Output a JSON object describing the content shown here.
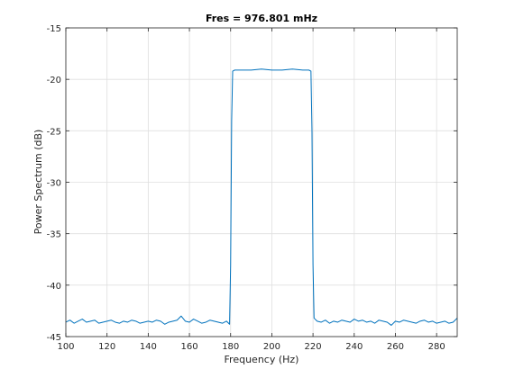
{
  "chart_data": {
    "type": "line",
    "title": "Fres = 976.801 mHz",
    "xlabel": "Frequency (Hz)",
    "ylabel": "Power Spectrum (dB)",
    "xlim": [
      100,
      290
    ],
    "ylim": [
      -45,
      -15
    ],
    "xticks": [
      100,
      120,
      140,
      160,
      180,
      200,
      220,
      240,
      260,
      280
    ],
    "yticks": [
      -45,
      -40,
      -35,
      -30,
      -25,
      -20,
      -15
    ],
    "xtick_labels": [
      "100",
      "120",
      "140",
      "160",
      "180",
      "200",
      "220",
      "240",
      "260",
      "280"
    ],
    "ytick_labels": [
      "-45",
      "-40",
      "-35",
      "-30",
      "-25",
      "-20",
      "-15"
    ],
    "grid": true,
    "series": [
      {
        "color": "#0072bd",
        "x": [
          100,
          102,
          104,
          106,
          108,
          110,
          112,
          114,
          116,
          118,
          120,
          122,
          124,
          126,
          128,
          130,
          132,
          134,
          136,
          138,
          140,
          142,
          144,
          146,
          148,
          150,
          152,
          154,
          156,
          158,
          160,
          162,
          164,
          166,
          168,
          170,
          172,
          174,
          176,
          178,
          179.5,
          180,
          180.5,
          181,
          182,
          185,
          190,
          195,
          200,
          205,
          210,
          215,
          218,
          219,
          219.5,
          220,
          220.5,
          221,
          222,
          224,
          226,
          228,
          230,
          232,
          234,
          236,
          238,
          240,
          242,
          244,
          246,
          248,
          250,
          252,
          254,
          256,
          258,
          260,
          262,
          264,
          266,
          268,
          270,
          272,
          274,
          276,
          278,
          280,
          282,
          284,
          286,
          288,
          290
        ],
        "y": [
          -43.6,
          -43.4,
          -43.7,
          -43.5,
          -43.3,
          -43.6,
          -43.5,
          -43.4,
          -43.7,
          -43.6,
          -43.5,
          -43.4,
          -43.6,
          -43.7,
          -43.5,
          -43.6,
          -43.4,
          -43.5,
          -43.7,
          -43.6,
          -43.5,
          -43.6,
          -43.4,
          -43.5,
          -43.8,
          -43.6,
          -43.5,
          -43.4,
          -43.0,
          -43.5,
          -43.6,
          -43.3,
          -43.5,
          -43.7,
          -43.6,
          -43.4,
          -43.5,
          -43.6,
          -43.7,
          -43.5,
          -43.8,
          -38.0,
          -24.0,
          -19.2,
          -19.1,
          -19.1,
          -19.1,
          -19.0,
          -19.1,
          -19.1,
          -19.0,
          -19.1,
          -19.1,
          -19.2,
          -25.0,
          -38.0,
          -43.2,
          -43.3,
          -43.5,
          -43.6,
          -43.4,
          -43.7,
          -43.5,
          -43.6,
          -43.4,
          -43.5,
          -43.6,
          -43.3,
          -43.5,
          -43.4,
          -43.6,
          -43.5,
          -43.7,
          -43.4,
          -43.5,
          -43.6,
          -43.9,
          -43.5,
          -43.6,
          -43.4,
          -43.5,
          -43.6,
          -43.7,
          -43.5,
          -43.4,
          -43.6,
          -43.5,
          -43.7,
          -43.6,
          -43.5,
          -43.7,
          -43.6,
          -43.2
        ]
      }
    ]
  }
}
